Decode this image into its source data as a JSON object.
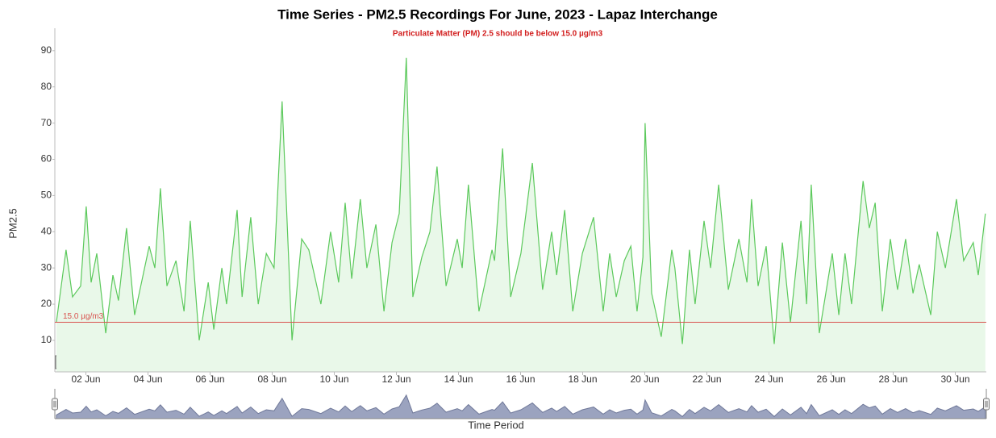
{
  "chart_data": {
    "type": "area",
    "title": "Time Series - PM2.5 Recordings For June, 2023 - Lapaz Interchange",
    "subtitle": "Particulate Matter (PM) 2.5 should be below 15.0 µg/m3",
    "y_label": "PM2.5",
    "x_label": "Time Period",
    "range_box": "30",
    "color": "#5cc95c",
    "fill_color": "#e9f8e9",
    "navigator_color": "#9ba3bf",
    "threshold": {
      "value": 15,
      "label": "15.0 µg/m3",
      "color": "#d9534f"
    },
    "xlim": [
      1,
      31
    ],
    "xticks": [
      {
        "value": 2,
        "label": "02 Jun"
      },
      {
        "value": 4,
        "label": "04 Jun"
      },
      {
        "value": 6,
        "label": "06 Jun"
      },
      {
        "value": 8,
        "label": "08 Jun"
      },
      {
        "value": 10,
        "label": "10 Jun"
      },
      {
        "value": 12,
        "label": "12 Jun"
      },
      {
        "value": 14,
        "label": "14 Jun"
      },
      {
        "value": 16,
        "label": "16 Jun"
      },
      {
        "value": 18,
        "label": "18 Jun"
      },
      {
        "value": 20,
        "label": "20 Jun"
      },
      {
        "value": 22,
        "label": "22 Jun"
      },
      {
        "value": 24,
        "label": "24 Jun"
      },
      {
        "value": 26,
        "label": "26 Jun"
      },
      {
        "value": 28,
        "label": "28 Jun"
      },
      {
        "value": 30,
        "label": "30 Jun"
      }
    ],
    "ylim": [
      1.3,
      96.2
    ],
    "yticks": [
      10,
      20,
      30,
      40,
      50,
      60,
      70,
      80,
      90
    ],
    "x": [
      1.05,
      1.36,
      1.57,
      1.83,
      2.01,
      2.17,
      2.35,
      2.64,
      2.87,
      3.05,
      3.31,
      3.57,
      4.04,
      4.22,
      4.4,
      4.61,
      4.9,
      5.16,
      5.36,
      5.65,
      5.94,
      6.12,
      6.38,
      6.53,
      6.87,
      7.03,
      7.31,
      7.55,
      7.81,
      8.06,
      8.32,
      8.64,
      8.95,
      9.18,
      9.57,
      9.88,
      10.14,
      10.35,
      10.56,
      10.84,
      11.05,
      11.34,
      11.6,
      11.86,
      12.09,
      12.32,
      12.53,
      12.82,
      13.08,
      13.31,
      13.6,
      13.96,
      14.12,
      14.32,
      14.66,
      15.08,
      15.16,
      15.42,
      15.68,
      16.01,
      16.38,
      16.71,
      17.0,
      17.16,
      17.42,
      17.68,
      17.99,
      18.35,
      18.66,
      18.87,
      19.08,
      19.34,
      19.55,
      19.75,
      19.94,
      20.01,
      20.22,
      20.53,
      20.87,
      20.97,
      21.21,
      21.44,
      21.62,
      21.91,
      22.12,
      22.38,
      22.69,
      23.03,
      23.29,
      23.44,
      23.65,
      23.91,
      24.17,
      24.43,
      24.69,
      25.03,
      25.21,
      25.36,
      25.62,
      26.04,
      26.25,
      26.45,
      26.66,
      27.03,
      27.23,
      27.42,
      27.65,
      27.91,
      28.14,
      28.4,
      28.64,
      28.84,
      29.21,
      29.42,
      29.68,
      30.04,
      30.27,
      30.58,
      30.74,
      30.97
    ],
    "values": [
      15,
      35,
      22,
      25,
      47,
      26,
      34,
      12,
      28,
      21,
      41,
      17,
      36,
      30,
      52,
      25,
      32,
      18,
      43,
      10,
      26,
      13,
      30,
      20,
      46,
      22,
      44,
      20,
      34,
      30,
      76,
      10,
      38,
      35,
      20,
      40,
      26,
      48,
      27,
      49,
      30,
      42,
      18,
      37,
      45,
      88,
      22,
      33,
      40,
      58,
      25,
      38,
      30,
      53,
      18,
      35,
      32,
      63,
      22,
      34,
      59,
      24,
      40,
      28,
      46,
      18,
      34,
      44,
      18,
      34,
      22,
      32,
      36,
      18,
      33,
      70,
      23,
      11,
      35,
      30,
      9,
      35,
      20,
      43,
      30,
      53,
      24,
      38,
      26,
      49,
      25,
      36,
      9,
      37,
      15,
      43,
      20,
      53,
      12,
      34,
      17,
      34,
      20,
      54,
      41,
      48,
      18,
      38,
      24,
      38,
      23,
      31,
      17,
      40,
      30,
      49,
      32,
      37,
      28,
      45
    ]
  }
}
